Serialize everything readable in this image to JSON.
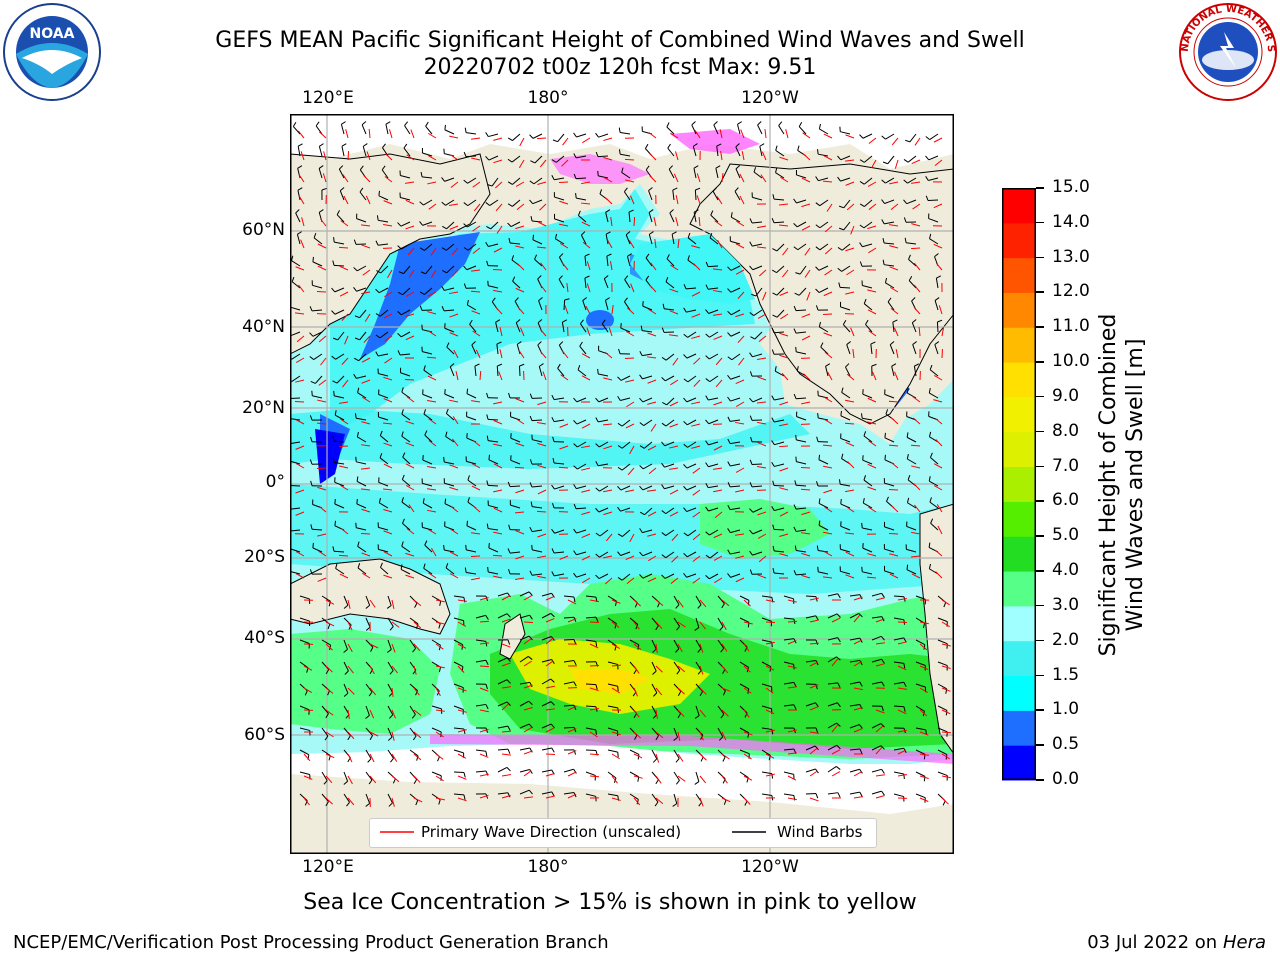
{
  "title_line1": "GEFS MEAN Pacific Significant Height of Combined Wind Waves and Swell",
  "title_line2": "20220702 t00z 120h fcst   Max: 9.51",
  "lon_labels": [
    "120°E",
    "180°",
    "120°W"
  ],
  "lat_labels": [
    "60°N",
    "40°N",
    "20°N",
    "0°",
    "20°S",
    "40°S",
    "60°S"
  ],
  "colorbar": {
    "label_line1": "Significant Height of Combined",
    "label_line2": "Wind Waves and Swell [m]",
    "ticks": [
      "0.0",
      "0.5",
      "1.0",
      "1.5",
      "2.0",
      "3.0",
      "4.0",
      "5.0",
      "6.0",
      "7.0",
      "8.0",
      "9.0",
      "10.0",
      "11.0",
      "12.0",
      "13.0",
      "14.0",
      "15.0"
    ],
    "colors": [
      "#0000ff",
      "#1e6eff",
      "#00ffff",
      "#40f0f0",
      "#a0ffff",
      "#55ff88",
      "#22dd22",
      "#55ee00",
      "#aaee00",
      "#ddf000",
      "#f0f000",
      "#ffe000",
      "#ffbb00",
      "#ff8800",
      "#ff5500",
      "#ff2200",
      "#ff0000"
    ]
  },
  "legend": {
    "wave_direction": "Primary Wave Direction (unscaled)",
    "wind_barbs": "Wind Barbs",
    "wave_color": "#ff0000",
    "barb_color": "#000000"
  },
  "subtitle": "Sea Ice Concentration > 15% is shown in pink to yellow",
  "footer_left": "NCEP/EMC/Verification Post Processing Product Generation Branch",
  "footer_date": "03 Jul 2022 on ",
  "footer_host": "Hera",
  "logos": {
    "left": "NOAA",
    "right": "NATIONAL WEATHER SERVICE"
  }
}
